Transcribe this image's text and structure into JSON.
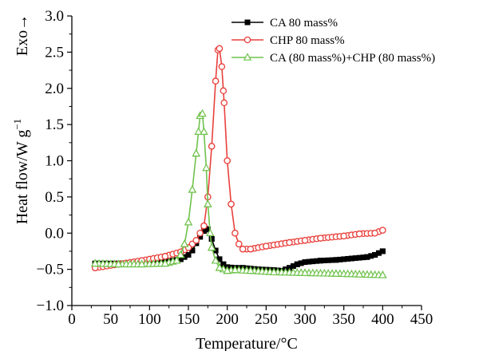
{
  "chart_data": {
    "type": "line",
    "xlabel": "Temperature/°C",
    "ylabel": "Heat flow/W g",
    "ylabel_superscript": "−1",
    "exo_label": "Exo→",
    "xlim": [
      0,
      450
    ],
    "ylim": [
      -1.0,
      3.0
    ],
    "x_ticks": [
      "0",
      "50",
      "100",
      "150",
      "200",
      "250",
      "300",
      "350",
      "400",
      "450"
    ],
    "y_ticks": [
      "−1.0",
      "−0.5",
      "0.0",
      "0.5",
      "1.0",
      "1.5",
      "2.0",
      "2.5",
      "3.0"
    ],
    "x_tick_values": [
      0,
      50,
      100,
      150,
      200,
      250,
      300,
      350,
      400,
      450
    ],
    "y_tick_values": [
      -1.0,
      -0.5,
      0.0,
      0.5,
      1.0,
      1.5,
      2.0,
      2.5,
      3.0
    ],
    "grid": false,
    "legend_position": "top-right",
    "series": [
      {
        "name": "CA 80 mass%",
        "color": "#000000",
        "marker": "filled-square",
        "x": [
          30,
          60,
          90,
          120,
          140,
          150,
          155,
          160,
          165,
          170,
          172,
          175,
          180,
          185,
          190,
          195,
          200,
          210,
          220,
          240,
          260,
          270,
          280,
          290,
          300,
          320,
          340,
          360,
          380,
          390,
          400
        ],
        "y": [
          -0.42,
          -0.42,
          -0.41,
          -0.4,
          -0.36,
          -0.3,
          -0.24,
          -0.14,
          -0.05,
          0.03,
          0.06,
          0.05,
          -0.08,
          -0.24,
          -0.36,
          -0.43,
          -0.47,
          -0.48,
          -0.48,
          -0.5,
          -0.51,
          -0.52,
          -0.48,
          -0.43,
          -0.4,
          -0.38,
          -0.37,
          -0.35,
          -0.33,
          -0.3,
          -0.25
        ]
      },
      {
        "name": "CHP 80 mass%",
        "color": "#e8413c",
        "marker": "open-circle",
        "x": [
          30,
          60,
          90,
          120,
          140,
          150,
          160,
          170,
          175,
          180,
          185,
          188,
          190,
          193,
          196,
          200,
          205,
          210,
          215,
          220,
          230,
          250,
          280,
          300,
          320,
          350,
          370,
          390,
          400
        ],
        "y": [
          -0.48,
          -0.43,
          -0.38,
          -0.32,
          -0.26,
          -0.2,
          -0.1,
          0.1,
          0.5,
          1.2,
          2.1,
          2.53,
          2.55,
          2.3,
          1.8,
          1.0,
          0.4,
          0.0,
          -0.15,
          -0.22,
          -0.22,
          -0.18,
          -0.13,
          -0.1,
          -0.07,
          -0.04,
          -0.01,
          0.0,
          0.04
        ]
      },
      {
        "name": "CA (80 mass%)+CHP (80 mass%)",
        "color": "#6fc24b",
        "marker": "open-triangle",
        "x": [
          30,
          60,
          90,
          120,
          135,
          140,
          145,
          150,
          155,
          160,
          163,
          165,
          168,
          170,
          173,
          175,
          178,
          180,
          185,
          190,
          200,
          210,
          230,
          260,
          300,
          340,
          370,
          400
        ],
        "y": [
          -0.42,
          -0.43,
          -0.43,
          -0.42,
          -0.38,
          -0.3,
          -0.15,
          0.15,
          0.6,
          1.1,
          1.4,
          1.62,
          1.65,
          1.4,
          0.9,
          0.4,
          0.0,
          -0.2,
          -0.38,
          -0.48,
          -0.52,
          -0.51,
          -0.52,
          -0.54,
          -0.55,
          -0.56,
          -0.57,
          -0.58
        ]
      }
    ]
  }
}
